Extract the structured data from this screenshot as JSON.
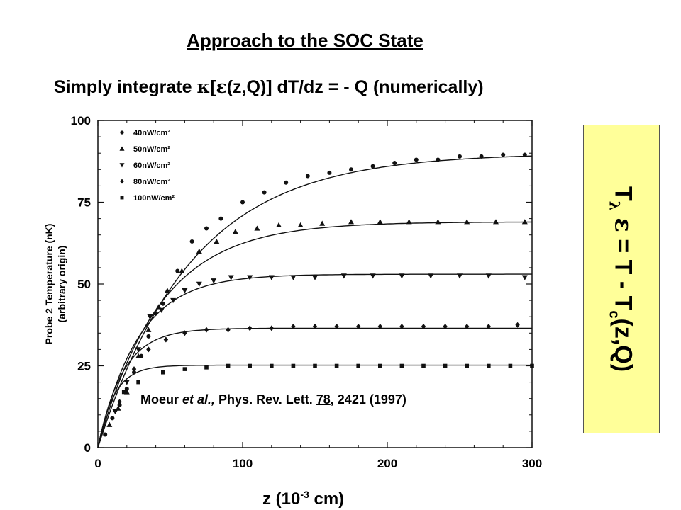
{
  "slide": {
    "title": "Approach to the SOC State",
    "subtitle_prefix": "Simply integrate ",
    "subtitle_kappa": "κ",
    "subtitle_open": "[",
    "subtitle_eps": "ε",
    "subtitle_rest": "(z,Q)] dT/dz = - Q (numerically)",
    "citation_author": "Moeur ",
    "citation_etal": "et al.,",
    "citation_journal": " Phys. Rev. Lett. ",
    "citation_volume": "78",
    "citation_pages": ", 2421 (1997)",
    "xlabel_prefix": "z (10",
    "xlabel_exp": "-3",
    "xlabel_suffix": " cm)",
    "side_T": "T",
    "side_lambda": "λ",
    "side_eps": "ε",
    "side_eq": " = T - T",
    "side_c": "c",
    "side_zq": "(z,Q)"
  },
  "chart_data": {
    "type": "scatter",
    "ylabel": "Probe 2 Temperature (nK)",
    "ylabel2": "(arbitrary origin)",
    "xlim": [
      0,
      300
    ],
    "ylim": [
      0,
      100
    ],
    "xticks": [
      "0",
      "100",
      "200",
      "300"
    ],
    "yticks": [
      "0",
      "25",
      "50",
      "75",
      "100"
    ],
    "legend_position": "top-left",
    "series": [
      {
        "name": "40nW/cm²",
        "marker": "circle",
        "x": [
          5,
          10,
          15,
          20,
          25,
          30,
          35,
          40,
          45,
          55,
          65,
          75,
          85,
          100,
          115,
          130,
          145,
          160,
          175,
          190,
          205,
          220,
          235,
          250,
          265,
          280,
          295
        ],
        "y": [
          4,
          9,
          13,
          18,
          23,
          28,
          34,
          41,
          44,
          54,
          63,
          67,
          70,
          75,
          78,
          81,
          83,
          84,
          85,
          86,
          87,
          88,
          88,
          89,
          89,
          89.5,
          89.5
        ],
        "curve_plateau": 90,
        "curve_k": 0.0155
      },
      {
        "name": "50nW/cm²",
        "marker": "triangle-up",
        "x": [
          8,
          14,
          20,
          28,
          35,
          42,
          48,
          58,
          70,
          82,
          95,
          110,
          125,
          140,
          155,
          175,
          195,
          215,
          235,
          255,
          275,
          295
        ],
        "y": [
          7,
          12,
          17,
          28,
          36,
          43,
          48,
          54,
          60,
          63,
          66,
          67,
          68,
          68,
          68.5,
          69,
          69,
          69,
          69,
          69,
          69,
          69
        ],
        "curve_plateau": 69,
        "curve_k": 0.0235
      },
      {
        "name": "60nW/cm²",
        "marker": "triangle-down",
        "x": [
          12,
          20,
          28,
          36,
          44,
          52,
          60,
          70,
          80,
          92,
          105,
          120,
          135,
          150,
          170,
          190,
          210,
          230,
          250,
          270,
          295
        ],
        "y": [
          11,
          20,
          30,
          40,
          42,
          45,
          48,
          50,
          51,
          52,
          52,
          52,
          52,
          52,
          52.5,
          52.5,
          52.5,
          52.5,
          52.5,
          52.5,
          52
        ],
        "curve_plateau": 53,
        "curve_k": 0.036
      },
      {
        "name": "80nW/cm²",
        "marker": "diamond",
        "x": [
          15,
          25,
          35,
          47,
          60,
          75,
          90,
          105,
          120,
          135,
          150,
          165,
          180,
          195,
          210,
          225,
          240,
          255,
          270,
          290
        ],
        "y": [
          14,
          24,
          30,
          33,
          35,
          36,
          36,
          36.5,
          36.5,
          37,
          37,
          37,
          37,
          37,
          37,
          37,
          37,
          37,
          37,
          37.5
        ],
        "curve_plateau": 36.5,
        "curve_k": 0.058
      },
      {
        "name": "100nW/cm²",
        "marker": "square",
        "x": [
          18,
          28,
          45,
          60,
          75,
          90,
          105,
          120,
          135,
          150,
          165,
          180,
          195,
          210,
          225,
          240,
          255,
          270,
          285,
          300
        ],
        "y": [
          17,
          20,
          23,
          24,
          24.5,
          25,
          25,
          25,
          25,
          25,
          25,
          25,
          25,
          25,
          25,
          25,
          25,
          25,
          25,
          25
        ],
        "curve_plateau": 25.2,
        "curve_k": 0.09
      }
    ]
  }
}
